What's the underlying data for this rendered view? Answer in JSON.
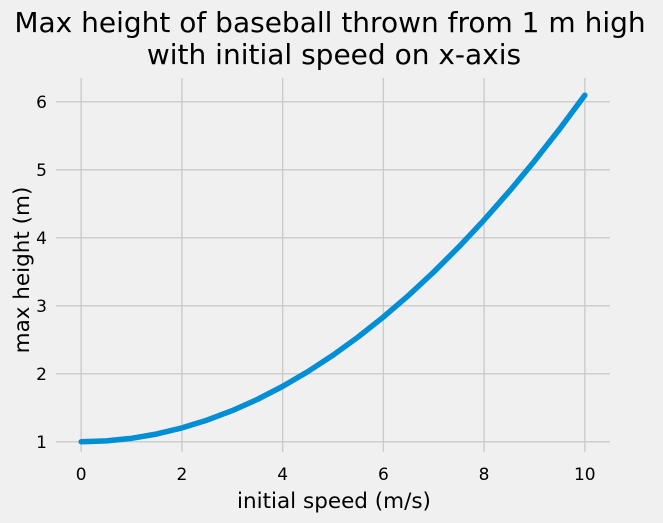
{
  "chart_data": {
    "type": "line",
    "title": "Max height of baseball thrown from 1 m high",
    "subtitle": "with initial speed on x-axis",
    "xlabel": "initial speed (m/s)",
    "ylabel": "max height (m)",
    "xlim": [
      -0.5,
      10.5
    ],
    "ylim": [
      0.85,
      6.35
    ],
    "xticks": [
      0,
      2,
      4,
      6,
      8,
      10
    ],
    "yticks": [
      1,
      2,
      3,
      4,
      5,
      6
    ],
    "grid": true,
    "series": [
      {
        "color": "#008fd5",
        "x": [
          0,
          0.5,
          1,
          1.5,
          2,
          2.5,
          3,
          3.5,
          4,
          4.5,
          5,
          5.5,
          6,
          6.5,
          7,
          7.5,
          8,
          8.5,
          9,
          9.5,
          10
        ],
        "y": [
          1.0,
          1.013,
          1.051,
          1.115,
          1.204,
          1.319,
          1.459,
          1.624,
          1.815,
          2.032,
          2.274,
          2.542,
          2.835,
          3.153,
          3.497,
          3.867,
          4.262,
          4.683,
          5.128,
          5.6,
          6.097
        ]
      }
    ]
  },
  "colors": {
    "background": "#f0f0f0",
    "grid": "#cbcbcb",
    "line": "#008fd5"
  }
}
